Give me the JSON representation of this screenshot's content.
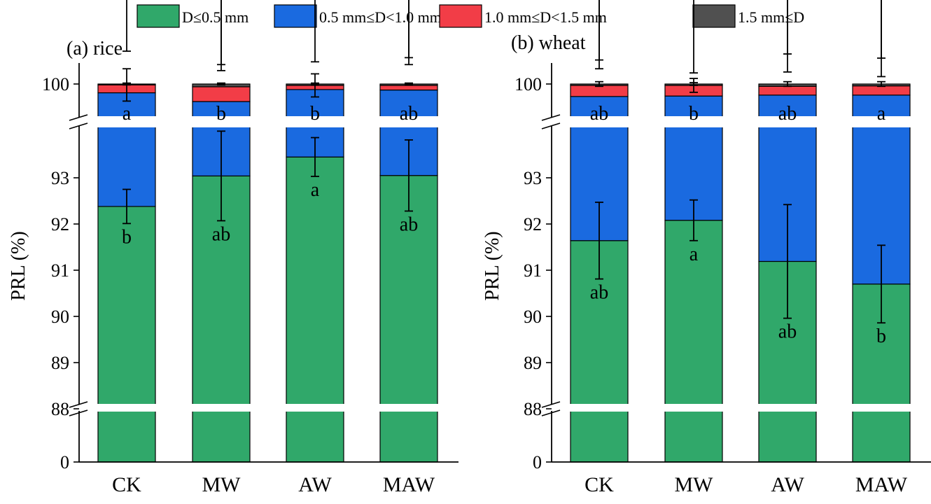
{
  "chart_data": {
    "type": "bar",
    "stacked": true,
    "broken_axis": true,
    "legend": {
      "placement": "top",
      "entries": [
        {
          "name": "D≤0.5 mm",
          "color": "#30a86a"
        },
        {
          "name": "0.5 mm≤D<1.0 mm",
          "color": "#1a6ae0"
        },
        {
          "name": "1.0 mm≤D<1.5 mm",
          "color": "#f23d47"
        },
        {
          "name": "1.5 mm≤D",
          "color": "#505050"
        }
      ]
    },
    "panels": [
      {
        "title": "(a) rice",
        "ylabel": "PRL (%)",
        "yticks": [
          "0",
          "88",
          "89",
          "90",
          "91",
          "92",
          "93",
          "100"
        ],
        "categories": [
          "CK",
          "MW",
          "AW",
          "MAW"
        ],
        "series": [
          {
            "name": "D≤0.5 mm",
            "values": [
              92.38,
              93.04,
              93.45,
              93.05
            ],
            "error": [
              0.37,
              0.97,
              0.42,
              0.77
            ],
            "labels": [
              "b",
              "ab",
              "a",
              "ab"
            ]
          },
          {
            "name": "0.5 mm≤D<1.0 mm",
            "values": [
              7.43,
              6.58,
              6.43,
              6.82
            ],
            "error": [
              0.9,
              0.8,
              0.6,
              0.7
            ],
            "labels": [
              "a",
              "b",
              "b",
              "ab"
            ]
          },
          {
            "name": "1.0 mm≤D<1.5 mm",
            "values": [
              0.17,
              0.32,
              0.09,
              0.1
            ],
            "error": [
              0.35,
              0.35,
              0.25,
              0.45
            ],
            "labels": [
              "",
              "",
              "",
              ""
            ]
          },
          {
            "name": "1.5 mm≤D",
            "values": [
              0.02,
              0.06,
              0.03,
              0.03
            ],
            "error": [
              0.02,
              0.02,
              0.02,
              0.02
            ],
            "labels": [
              "",
              "",
              "",
              ""
            ]
          }
        ]
      },
      {
        "title": "(b) wheat",
        "ylabel": "PRL (%)",
        "yticks": [
          "0",
          "88",
          "89",
          "90",
          "91",
          "92",
          "93",
          "100"
        ],
        "categories": [
          "CK",
          "MW",
          "AW",
          "MAW"
        ],
        "series": [
          {
            "name": "D≤0.5 mm",
            "values": [
              91.64,
              92.08,
              91.19,
              90.7
            ],
            "error": [
              0.83,
              0.44,
              1.23,
              0.84
            ],
            "labels": [
              "ab",
              "a",
              "ab",
              "b"
            ]
          },
          {
            "name": "0.5 mm≤D<1.0 mm",
            "values": [
              8.09,
              7.66,
              8.57,
              9.06
            ],
            "error": [
              0.6,
              0.5,
              0.5,
              0.4
            ],
            "labels": [
              "ab",
              "b",
              "ab",
              "a"
            ]
          },
          {
            "name": "1.0 mm≤D<1.5 mm",
            "values": [
              0.24,
              0.23,
              0.19,
              0.2
            ],
            "error": [
              0.55,
              0.15,
              0.7,
              0.6
            ],
            "labels": [
              "",
              "",
              "",
              ""
            ]
          },
          {
            "name": "1.5 mm≤D",
            "values": [
              0.03,
              0.03,
              0.05,
              0.04
            ],
            "error": [
              0.05,
              0.03,
              0.05,
              0.05
            ],
            "labels": [
              "",
              "",
              "",
              ""
            ]
          }
        ]
      }
    ]
  }
}
